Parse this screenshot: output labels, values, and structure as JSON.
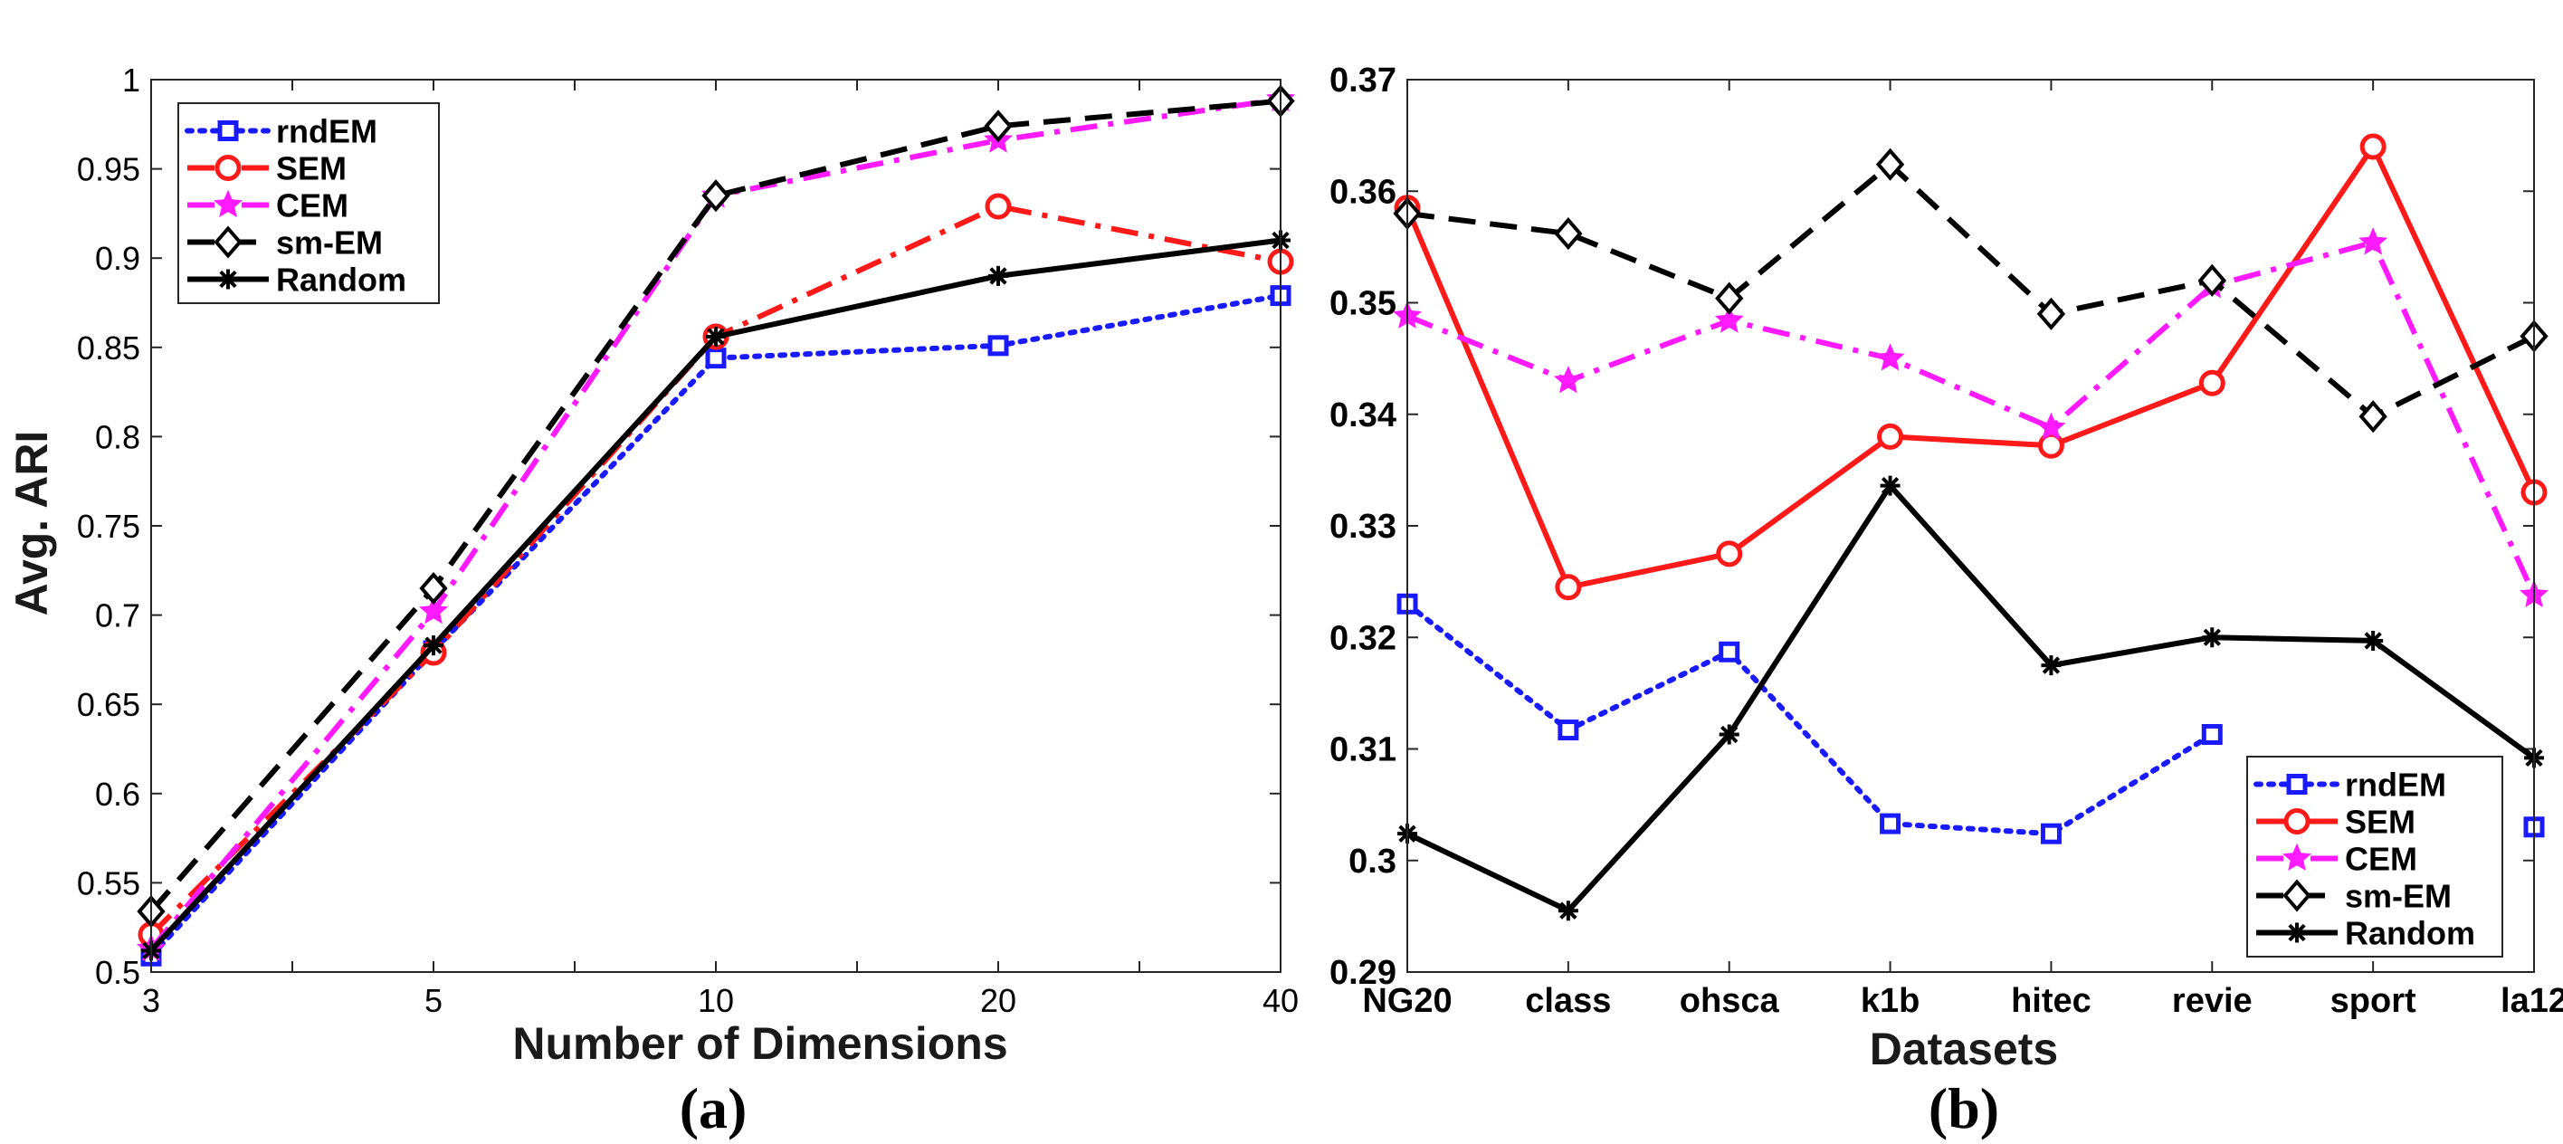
{
  "chart_data": [
    {
      "type": "line",
      "panel_label": "(a)",
      "xlabel": "Number of Dimensions",
      "ylabel": "Avg. ARI",
      "categories": [
        "3",
        "5",
        "10",
        "20",
        "40"
      ],
      "yticks": [
        "0.5",
        "0.55",
        "0.6",
        "0.65",
        "0.7",
        "0.75",
        "0.8",
        "0.85",
        "0.9",
        "0.95",
        "1"
      ],
      "ylim": [
        0.5,
        1
      ],
      "legend_position": "top-left",
      "series": [
        {
          "name": "rndEM",
          "color": "#1a1aff",
          "dash": "dotted",
          "marker": "square",
          "values": [
            0.509,
            0.68,
            0.844,
            0.851,
            0.879
          ]
        },
        {
          "name": "SEM",
          "color": "#ff1a1a",
          "dash": "dashdot",
          "marker": "circle",
          "values": [
            0.521,
            0.679,
            0.856,
            0.929,
            0.898
          ]
        },
        {
          "name": "CEM",
          "color": "#ff1aff",
          "dash": "dashdot",
          "marker": "star",
          "values": [
            0.513,
            0.702,
            0.935,
            0.966,
            0.989
          ]
        },
        {
          "name": "sm-EM",
          "color": "#000000",
          "dash": "dashed",
          "marker": "diamond",
          "values": [
            0.534,
            0.715,
            0.935,
            0.974,
            0.988
          ]
        },
        {
          "name": "Random",
          "color": "#000000",
          "dash": "solid",
          "marker": "asterisk",
          "values": [
            0.512,
            0.683,
            0.856,
            0.89,
            0.91
          ]
        }
      ]
    },
    {
      "type": "line",
      "panel_label": "(b)",
      "xlabel": "Datasets",
      "ylabel": "",
      "categories": [
        "NG20",
        "class",
        "ohsca",
        "k1b",
        "hitec",
        "revie",
        "sport",
        "la12"
      ],
      "yticks": [
        "0.29",
        "0.3",
        "0.31",
        "0.32",
        "0.33",
        "0.34",
        "0.35",
        "0.36",
        "0.37"
      ],
      "ylim": [
        0.29,
        0.37
      ],
      "legend_position": "bottom-right",
      "series": [
        {
          "name": "rndEM",
          "color": "#1a1aff",
          "dash": "dotted",
          "marker": "square",
          "values": [
            0.323,
            0.3117,
            0.3187,
            0.3033,
            0.3024,
            0.3113,
            null,
            0.303
          ]
        },
        {
          "name": "SEM",
          "color": "#ff1a1a",
          "dash": "solid",
          "marker": "circle",
          "values": [
            0.3585,
            0.3245,
            0.3275,
            0.338,
            0.3372,
            0.3428,
            0.364,
            0.333
          ]
        },
        {
          "name": "CEM",
          "color": "#ff1aff",
          "dash": "dashdot",
          "marker": "star",
          "values": [
            0.3488,
            0.343,
            0.3484,
            0.345,
            0.3388,
            0.3515,
            0.3554,
            0.3238
          ]
        },
        {
          "name": "sm-EM",
          "color": "#000000",
          "dash": "dashed",
          "marker": "diamond",
          "values": [
            0.358,
            0.3562,
            0.3504,
            0.3624,
            0.349,
            0.352,
            0.3398,
            0.347
          ]
        },
        {
          "name": "Random",
          "color": "#000000",
          "dash": "solid",
          "marker": "asterisk",
          "values": [
            0.3024,
            0.2955,
            0.3113,
            0.3336,
            0.3175,
            0.32,
            0.3197,
            0.3092
          ]
        }
      ]
    }
  ]
}
